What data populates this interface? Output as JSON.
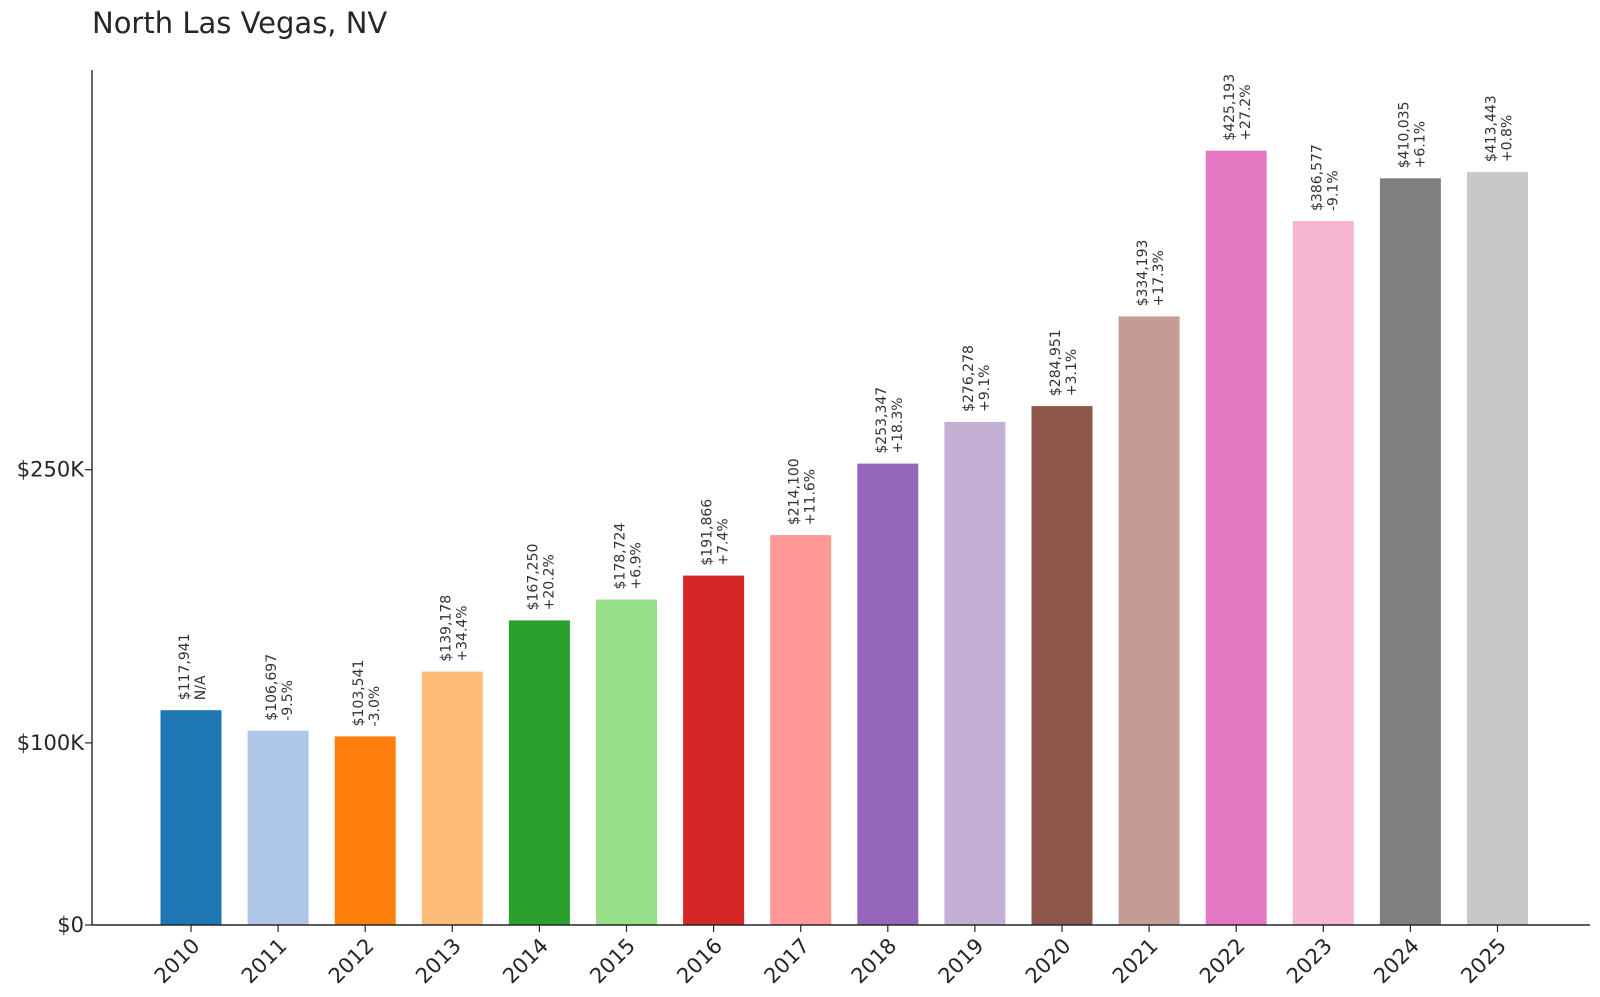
{
  "chart_data": {
    "type": "bar",
    "title": "North Las Vegas, NV",
    "xlabel": "",
    "ylabel": "",
    "categories": [
      "2010",
      "2011",
      "2012",
      "2013",
      "2014",
      "2015",
      "2016",
      "2017",
      "2018",
      "2019",
      "2020",
      "2021",
      "2022",
      "2023",
      "2024",
      "2025"
    ],
    "values": [
      117941,
      106697,
      103541,
      139178,
      167250,
      178724,
      191866,
      214100,
      253347,
      276278,
      284951,
      334193,
      425193,
      386577,
      410035,
      413443
    ],
    "value_labels": [
      "$117,941",
      "$106,697",
      "$103,541",
      "$139,178",
      "$167,250",
      "$178,724",
      "$191,866",
      "$214,100",
      "$253,347",
      "$276,278",
      "$284,951",
      "$334,193",
      "$425,193",
      "$386,577",
      "$410,035",
      "$413,443"
    ],
    "change_labels": [
      "N/A",
      "-9.5%",
      "-3.0%",
      "+34.4%",
      "+20.2%",
      "+6.9%",
      "+7.4%",
      "+11.6%",
      "+18.3%",
      "+9.1%",
      "+3.1%",
      "+17.3%",
      "+27.2%",
      "-9.1%",
      "+6.1%",
      "+0.8%"
    ],
    "colors": [
      "#1f77b4",
      "#aec7e8",
      "#ff7f0e",
      "#ffbb78",
      "#2ca02c",
      "#98df8a",
      "#d62728",
      "#ff9896",
      "#9467bd",
      "#c5b0d5",
      "#8c564b",
      "#c49c94",
      "#e377c2",
      "#f7b6d2",
      "#7f7f7f",
      "#c7c7c7"
    ],
    "yticks": [
      0,
      100000,
      250000
    ],
    "ytick_labels": [
      "$0",
      "$100K",
      "$250K"
    ],
    "ylim": [
      0,
      446453
    ],
    "grid": false,
    "legend": "none"
  }
}
